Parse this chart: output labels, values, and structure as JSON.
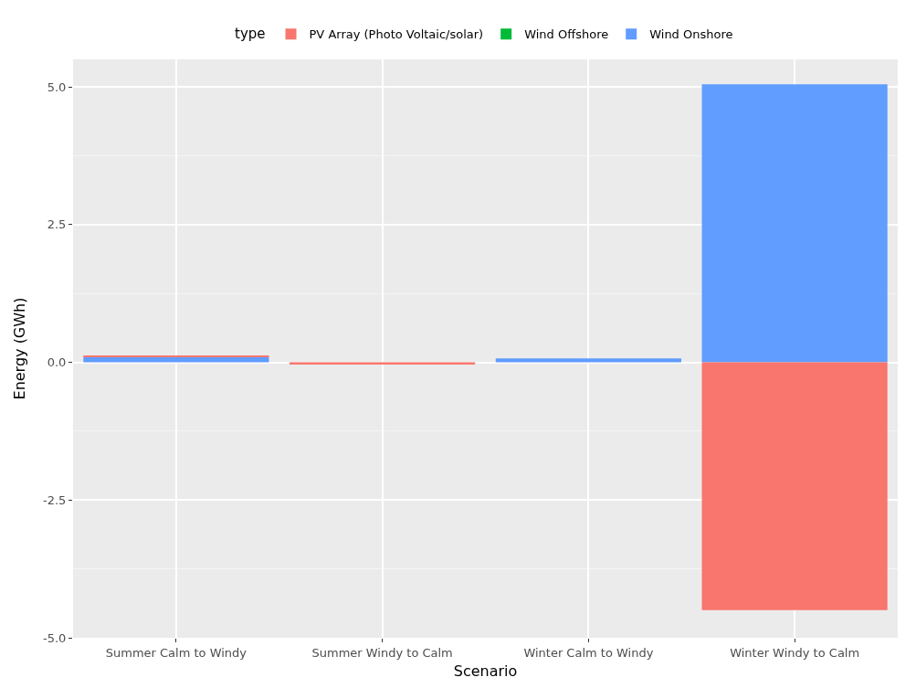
{
  "chart_data": {
    "type": "bar",
    "stacked": true,
    "xlabel": "Scenario",
    "ylabel": "Energy (GWh)",
    "legend_title": "type",
    "legend": "top",
    "grid": true,
    "categories": [
      "Summer Calm to Windy",
      "Summer Windy to Calm",
      "Winter Calm to Windy",
      "Winter Windy to Calm"
    ],
    "series": [
      {
        "name": "Wind Onshore",
        "color": "#619cff",
        "values": [
          0.1,
          null,
          0.07,
          5.05
        ]
      },
      {
        "name": "Wind Offshore",
        "color": "#00ba38",
        "values": [
          null,
          null,
          null,
          null
        ]
      },
      {
        "name": "PV Array (Photo Voltaic/solar)",
        "color": "#f8766d",
        "values": [
          0.02,
          -0.04,
          null,
          -4.5
        ]
      }
    ],
    "ylim": [
      -5.0,
      5.5
    ],
    "yticks": [
      {
        "value": -5,
        "label": "-5.0"
      },
      {
        "value": -2.5,
        "label": "-2.5"
      },
      {
        "value": 0,
        "label": "0.0"
      },
      {
        "value": 2.5,
        "label": "2.5"
      },
      {
        "value": 5,
        "label": "5.0"
      }
    ]
  }
}
